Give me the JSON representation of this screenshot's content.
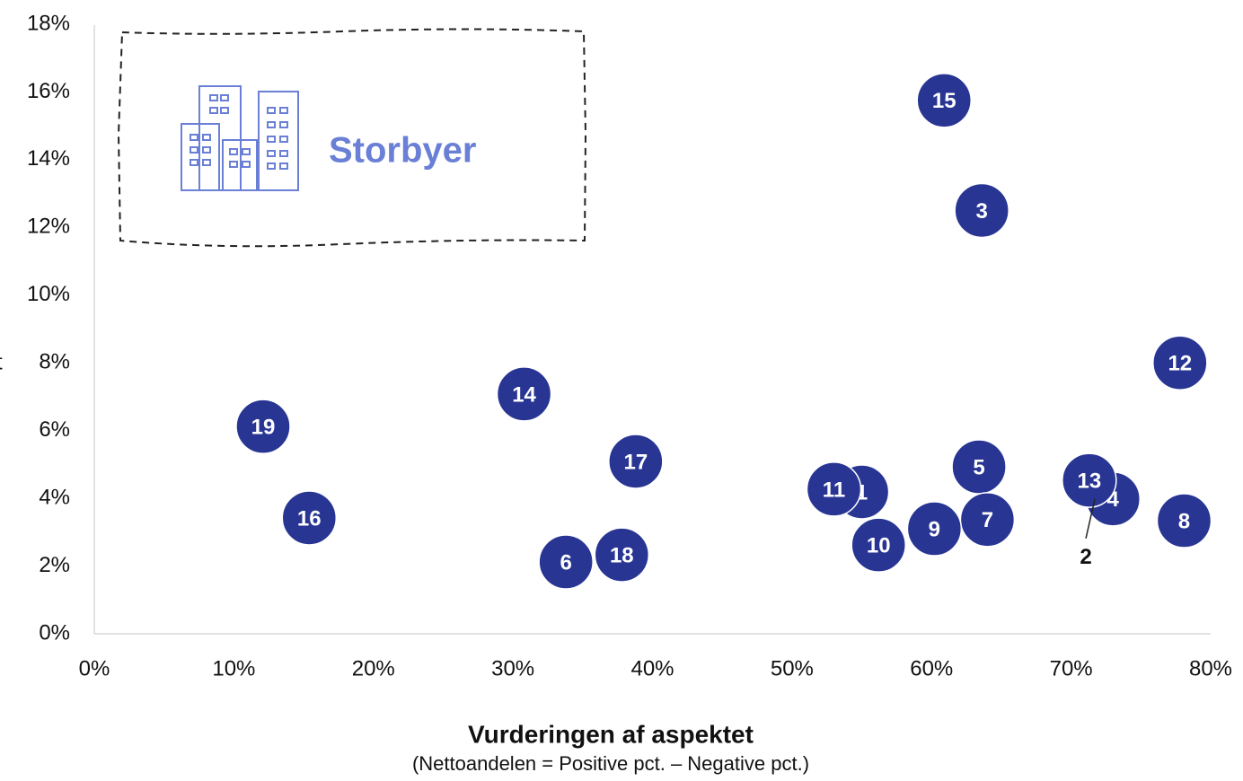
{
  "chart_data": {
    "type": "scatter",
    "y_label": "t",
    "xlabel": "Vurderingen af aspektet",
    "xlabel_note": "(Nettoandelen = Positive pct. – Negative pct.)",
    "annotation": "Storbyer",
    "color": "#283593",
    "xlim": [
      0,
      80
    ],
    "ylim": [
      0,
      18
    ],
    "xticks": [
      {
        "value": 0,
        "label": "0%"
      },
      {
        "value": 10,
        "label": "10%"
      },
      {
        "value": 20,
        "label": "20%"
      },
      {
        "value": 30,
        "label": "30%"
      },
      {
        "value": 40,
        "label": "40%"
      },
      {
        "value": 50,
        "label": "50%"
      },
      {
        "value": 60,
        "label": "60%"
      },
      {
        "value": 70,
        "label": "70%"
      },
      {
        "value": 80,
        "label": "80%"
      }
    ],
    "yticks": [
      {
        "value": 0,
        "label": "0%"
      },
      {
        "value": 2,
        "label": "2%"
      },
      {
        "value": 4,
        "label": "4%"
      },
      {
        "value": 6,
        "label": "6%"
      },
      {
        "value": 8,
        "label": "8%"
      },
      {
        "value": 10,
        "label": "10%"
      },
      {
        "value": 12,
        "label": "12%"
      },
      {
        "value": 14,
        "label": "14%"
      },
      {
        "value": 16,
        "label": "16%"
      },
      {
        "value": 18,
        "label": "18%"
      }
    ],
    "labels": [
      "1",
      "3",
      "4",
      "5",
      "6",
      "7",
      "8",
      "9",
      "10",
      "11",
      "12",
      "13",
      "14",
      "15",
      "16",
      "17",
      "18",
      "19"
    ],
    "x": [
      55.0,
      63.6,
      73.0,
      63.4,
      33.8,
      64.0,
      78.1,
      60.2,
      56.2,
      53.0,
      77.8,
      71.3,
      30.8,
      60.9,
      15.4,
      38.8,
      37.8,
      12.1
    ],
    "values": [
      4.19,
      12.5,
      3.98,
      4.93,
      2.12,
      3.37,
      3.34,
      3.1,
      2.62,
      4.27,
      8.0,
      4.53,
      7.08,
      15.75,
      3.42,
      5.09,
      2.33,
      6.12
    ],
    "callouts": {
      "labels": [
        "2"
      ],
      "x": [
        71.7
      ],
      "values": [
        3.98
      ]
    }
  }
}
